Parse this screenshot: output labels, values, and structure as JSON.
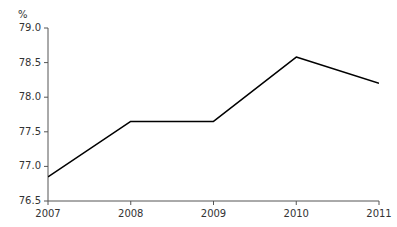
{
  "chart_data": {
    "type": "line",
    "ylabel": "%",
    "x": [
      2007,
      2008,
      2009,
      2010,
      2011
    ],
    "values": [
      76.85,
      77.65,
      77.65,
      78.58,
      78.2
    ],
    "color": "#000000",
    "xlim": [
      2007,
      2011
    ],
    "xticks": [
      2007,
      2008,
      2009,
      2010,
      2011
    ],
    "ylim": [
      76.5,
      79.0
    ],
    "yticks": [
      76.5,
      {
        "value": 77.0,
        "label": "77.0"
      },
      77.5,
      {
        "value": 78.0,
        "label": "78.0"
      },
      78.5,
      {
        "value": 79.0,
        "label": "79.0"
      }
    ],
    "grid": false
  }
}
